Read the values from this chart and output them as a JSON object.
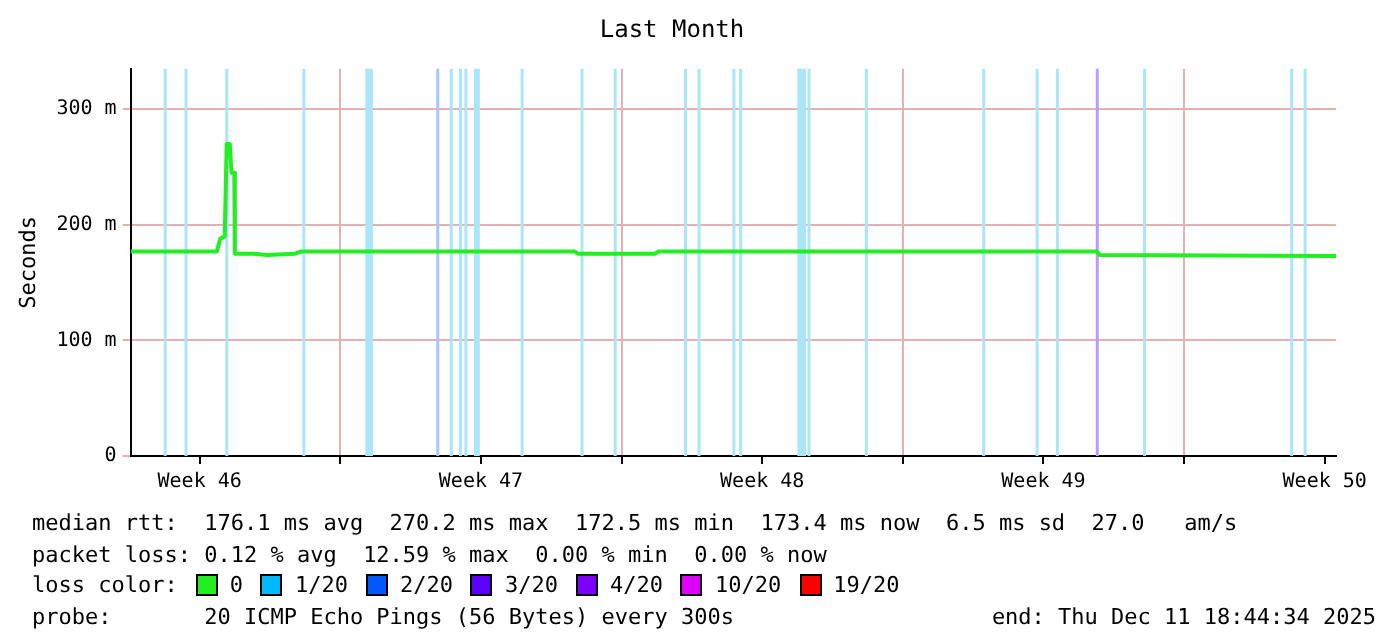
{
  "chart_data": {
    "type": "line",
    "title": "Last Month",
    "ylabel": "Seconds",
    "xlim": [
      "2025-11-11T18:44",
      "2025-12-11T18:44"
    ],
    "xticks": [
      {
        "value": "2025-11-13T12:00",
        "label": "Week 46"
      },
      {
        "value": "2025-11-17",
        "label": null
      },
      {
        "value": "2025-11-20T12:00",
        "label": "Week 47"
      },
      {
        "value": "2025-11-24",
        "label": null
      },
      {
        "value": "2025-11-27T12:00",
        "label": "Week 48"
      },
      {
        "value": "2025-12-01",
        "label": null
      },
      {
        "value": "2025-12-04T12:00",
        "label": "Week 49"
      },
      {
        "value": "2025-12-08",
        "label": null
      },
      {
        "value": "2025-12-11T12:00",
        "label": "Week 50"
      }
    ],
    "ylim": [
      0,
      335
    ],
    "yticks": [
      0,
      {
        "value": 100,
        "label": "100 m"
      },
      {
        "value": 200,
        "label": "200 m"
      },
      {
        "value": 300,
        "label": "300 m"
      }
    ],
    "grid": true,
    "legend": "bottom",
    "legend_title": "loss color:",
    "marker": "none",
    "line_style": "solid",
    "series": [
      {
        "name": "0",
        "color": "#22ee22",
        "x": [
          "2025-11-11T18:44",
          "2025-11-13T22:15",
          "2025-11-14T00:16",
          "2025-11-14T02:57",
          "2025-11-14T04:08",
          "2025-11-14T05:59",
          "2025-11-14T06:59",
          "2025-11-14T08:40",
          "2025-11-14T09:00",
          "2025-11-14T19:45",
          "2025-11-15T04:09",
          "2025-11-15T20:57",
          "2025-11-16T00:39",
          "2025-11-22T19:47",
          "2025-11-22T22:08",
          "2025-11-24T19:49",
          "2025-11-24T22:10",
          "2025-12-05T19:45",
          "2025-12-05T21:36",
          "2025-12-11T18:44"
        ],
        "values": [
          177,
          177,
          188,
          190,
          270,
          270,
          245,
          245,
          175,
          175,
          174,
          175,
          177,
          177,
          175,
          175,
          177,
          177,
          174,
          173
        ]
      },
      {
        "name": "1/20",
        "color": "#00b8ff"
      },
      {
        "name": "2/20",
        "color": "#0059ff"
      },
      {
        "name": "3/20",
        "color": "#5e00ff"
      },
      {
        "name": "4/20",
        "color": "#7e00ff"
      },
      {
        "name": "10/20",
        "color": "#dd00ff"
      },
      {
        "name": "19/20",
        "color": "#ff0000"
      }
    ],
    "bands": [
      {
        "axis": "x",
        "from": "2025-11-12T14:30",
        "to": "2025-11-12T16:10",
        "color": "#aae6fa"
      },
      {
        "axis": "x",
        "from": "2025-11-13T02:56",
        "to": "2025-11-13T04:36",
        "color": "#aae6fa"
      },
      {
        "axis": "x",
        "from": "2025-11-14T03:18",
        "to": "2025-11-14T04:58",
        "color": "#aae6fa"
      },
      {
        "axis": "x",
        "from": "2025-11-16T01:20",
        "to": "2025-11-16T03:00",
        "color": "#aae6fa"
      },
      {
        "axis": "x",
        "from": "2025-11-17T14:57",
        "to": "2025-11-17T19:29",
        "color": "#aae6fa"
      },
      {
        "axis": "x",
        "from": "2025-11-19T09:18",
        "to": "2025-11-19T10:58",
        "color": "#a8c4ff"
      },
      {
        "axis": "x",
        "from": "2025-11-19T17:22",
        "to": "2025-11-19T19:02",
        "color": "#aae6fa"
      },
      {
        "axis": "x",
        "from": "2025-11-19T22:54",
        "to": "2025-11-20T00:34",
        "color": "#aae6fa"
      },
      {
        "axis": "x",
        "from": "2025-11-20T02:06",
        "to": "2025-11-20T03:46",
        "color": "#aae6fa"
      },
      {
        "axis": "x",
        "from": "2025-11-20T07:48",
        "to": "2025-11-20T11:20",
        "color": "#aae6fa"
      },
      {
        "axis": "x",
        "from": "2025-11-21T11:42",
        "to": "2025-11-21T13:22",
        "color": "#aae6fa"
      },
      {
        "axis": "x",
        "from": "2025-11-22T23:29",
        "to": "2025-11-23T01:09",
        "color": "#aae6fa"
      },
      {
        "axis": "x",
        "from": "2025-11-23T19:18",
        "to": "2025-11-23T20:58",
        "color": "#aae6fa"
      },
      {
        "axis": "x",
        "from": "2025-11-25T13:18",
        "to": "2025-11-25T14:58",
        "color": "#aae6fa"
      },
      {
        "axis": "x",
        "from": "2025-11-25T21:22",
        "to": "2025-11-25T23:02",
        "color": "#aae6fa"
      },
      {
        "axis": "x",
        "from": "2025-11-26T18:12",
        "to": "2025-11-26T19:52",
        "color": "#aae6fa"
      },
      {
        "axis": "x",
        "from": "2025-11-26T22:14",
        "to": "2025-11-26T23:54",
        "color": "#aae6fa"
      },
      {
        "axis": "x",
        "from": "2025-11-28T09:00",
        "to": "2025-11-28T14:12",
        "color": "#aae6fa"
      },
      {
        "axis": "x",
        "from": "2025-11-28T15:03",
        "to": "2025-11-28T16:43",
        "color": "#aae6fa"
      },
      {
        "axis": "x",
        "from": "2025-11-30T01:20",
        "to": "2025-11-30T03:00",
        "color": "#aae6fa"
      },
      {
        "axis": "x",
        "from": "2025-12-02T23:23",
        "to": "2025-12-03T01:03",
        "color": "#aae6fa"
      },
      {
        "axis": "x",
        "from": "2025-12-04T07:18",
        "to": "2025-12-04T08:58",
        "color": "#aae6fa"
      },
      {
        "axis": "x",
        "from": "2025-12-04T19:24",
        "to": "2025-12-04T21:04",
        "color": "#aae6fa"
      },
      {
        "axis": "x",
        "from": "2025-12-05T19:15",
        "to": "2025-12-05T20:55",
        "color": "#b99cff"
      },
      {
        "axis": "x",
        "from": "2025-12-06T23:29",
        "to": "2025-12-07T01:09",
        "color": "#aae6fa"
      },
      {
        "axis": "x",
        "from": "2025-12-10T15:21",
        "to": "2025-12-10T17:01",
        "color": "#aae6fa"
      },
      {
        "axis": "x",
        "from": "2025-12-10T23:24",
        "to": "2025-12-11T01:04",
        "color": "#aae6fa"
      }
    ],
    "annotations": [
      "median rtt:  176.1 ms avg  270.2 ms max  172.5 ms min  173.4 ms now  6.5 ms sd  27.0   am/s",
      "packet loss: 0.12 % avg  12.59 % max  0.00 % min  0.00 % now",
      "probe:       20 ICMP Echo Pings (56 Bytes) every 300s",
      "end: Thu Dec 11 18:44:34 2025"
    ]
  }
}
